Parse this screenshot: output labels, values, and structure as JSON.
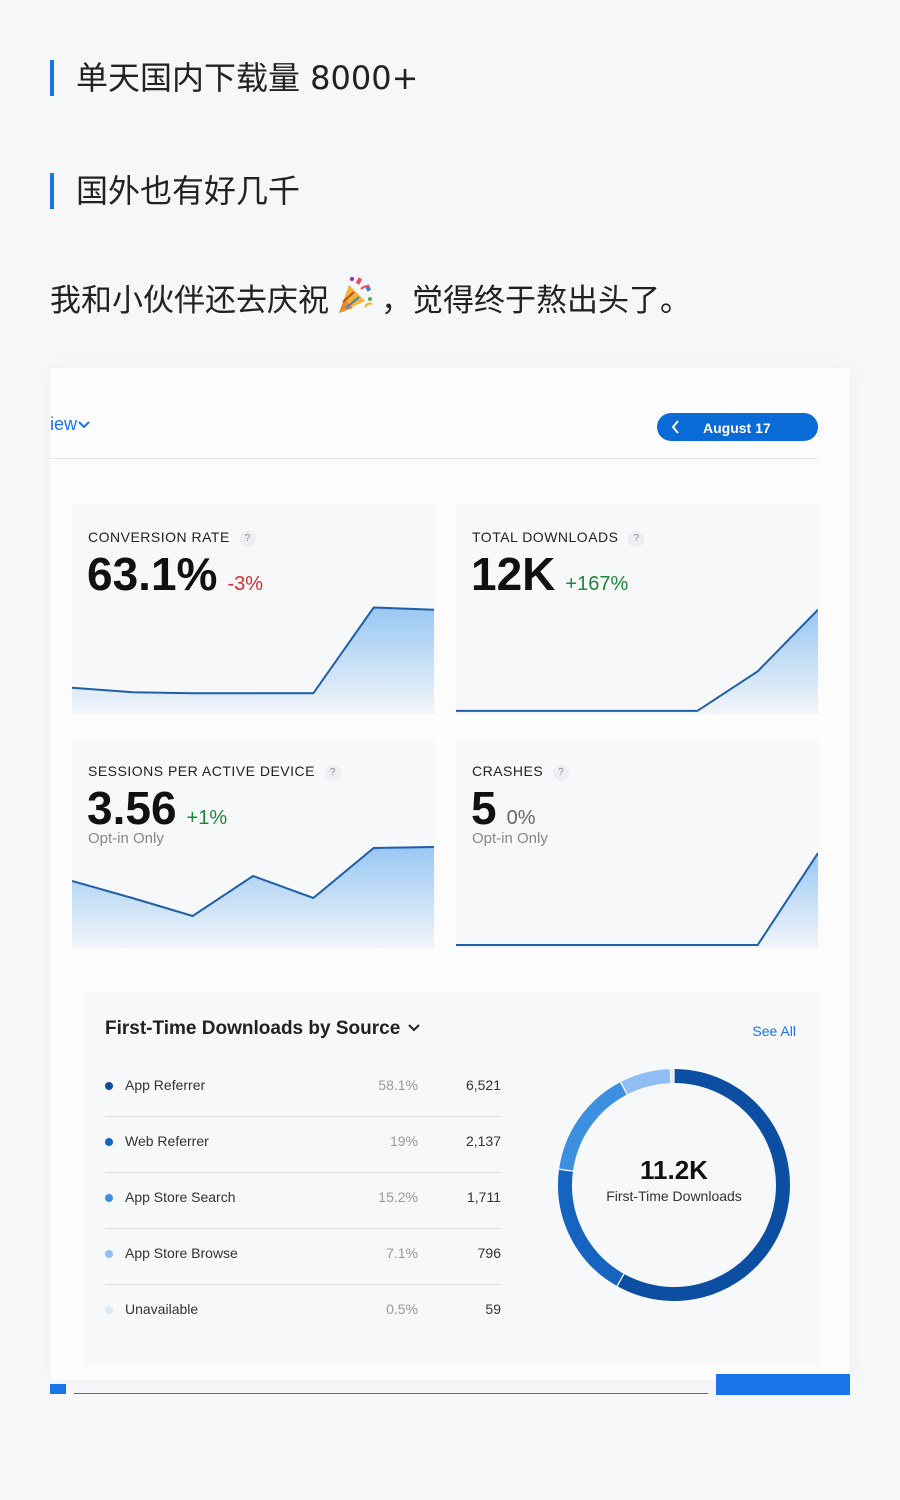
{
  "headings": [
    "单天国内下载量 8000+",
    "国外也有好几千"
  ],
  "paragraph": {
    "before": "我和小伙伴还去庆祝",
    "emoji": "party-popper-icon",
    "after": "，觉得终于熬出头了。"
  },
  "toolbar": {
    "view_label": "iew",
    "date_label": "August 17"
  },
  "colors": {
    "accent": "#1a73e8",
    "pill": "#0a6bd6",
    "negative": "#d62b2b",
    "positive": "#1d8a3a",
    "line": "#1f5fa8",
    "fill_top": "#8ec2f2"
  },
  "metrics": [
    {
      "label": "CONVERSION RATE",
      "value": "63.1%",
      "change": "-3%",
      "trend": "negative",
      "sub": "",
      "spark": [
        0.22,
        0.18,
        0.17,
        0.17,
        0.17,
        0.95,
        0.93
      ]
    },
    {
      "label": "TOTAL DOWNLOADS",
      "value": "12K",
      "change": "+167%",
      "trend": "positive",
      "sub": "",
      "spark": [
        0.01,
        0.01,
        0.01,
        0.01,
        0.01,
        0.37,
        0.93
      ]
    },
    {
      "label": "SESSIONS PER ACTIVE DEVICE",
      "value": "3.56",
      "change": "+1%",
      "trend": "positive",
      "sub": "Opt-in Only",
      "spark": [
        0.65,
        0.48,
        0.3,
        0.7,
        0.48,
        0.98,
        0.99
      ]
    },
    {
      "label": "CRASHES",
      "value": "5",
      "change": "0%",
      "trend": "neutral",
      "sub": "Opt-in Only",
      "spark": [
        0.01,
        0.01,
        0.01,
        0.01,
        0.01,
        0.01,
        0.93
      ]
    }
  ],
  "source": {
    "title": "First-Time Downloads by Source",
    "see_all": "See All",
    "rows": [
      {
        "name": "App Referrer",
        "pct": "58.1%",
        "count": "6,521",
        "color": "#0b4ea2"
      },
      {
        "name": "Web Referrer",
        "pct": "19%",
        "count": "2,137",
        "color": "#1565c0"
      },
      {
        "name": "App Store Search",
        "pct": "15.2%",
        "count": "1,711",
        "color": "#3d8fe0"
      },
      {
        "name": "App Store Browse",
        "pct": "7.1%",
        "count": "796",
        "color": "#8fbff2"
      },
      {
        "name": "Unavailable",
        "pct": "0.5%",
        "count": "59",
        "color": "#dde9f7"
      }
    ],
    "donut_values": [
      58.1,
      19,
      15.2,
      7.1,
      0.5
    ],
    "total": "11.2K",
    "total_label": "First-Time Downloads"
  }
}
